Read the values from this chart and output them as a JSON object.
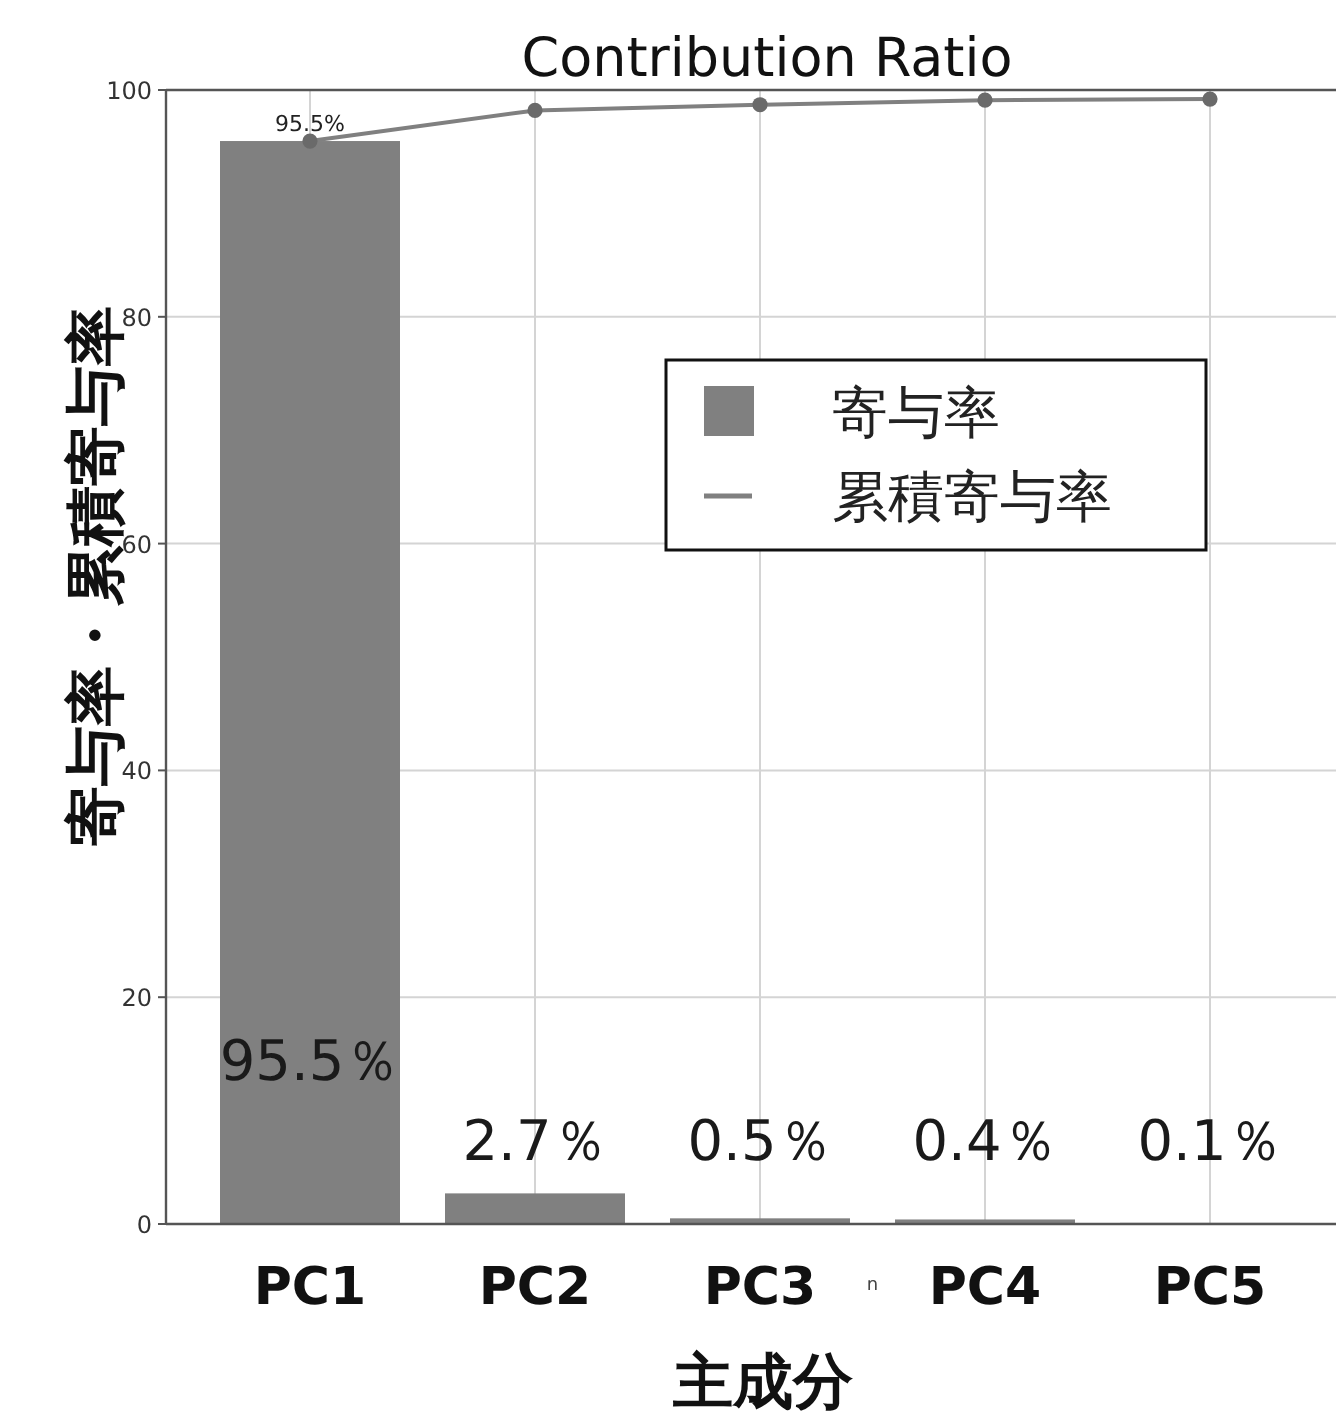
{
  "chart_data": {
    "type": "bar",
    "title": "Contribution Ratio",
    "xlabel": "主成分",
    "ylabel": "寄与率・累積寄与率",
    "categories": [
      "PC1",
      "PC2",
      "PC3",
      "PC4",
      "PC5"
    ],
    "series": [
      {
        "name": "寄与率",
        "color": "#808080",
        "values": [
          95.5,
          2.7,
          0.5,
          0.4,
          0.1
        ],
        "value_labels": [
          "95.5％",
          "2.7％",
          "0.5％",
          "0.4％",
          "0.1％"
        ]
      },
      {
        "name": "累積寄与率",
        "type": "line",
        "color": "#808080",
        "marker": "circle",
        "values": [
          95.5,
          98.2,
          98.7,
          99.1,
          99.2
        ],
        "value_labels": [
          "95.5%",
          null,
          null,
          null,
          null
        ]
      }
    ],
    "ylim": [
      0,
      100
    ],
    "yticks": [
      0,
      20,
      40,
      60,
      80,
      100
    ],
    "grid": true,
    "legend": "right",
    "annotations": [
      "n"
    ]
  }
}
